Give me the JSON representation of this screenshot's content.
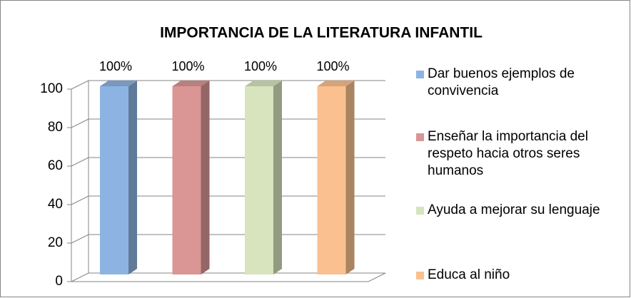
{
  "chart_data": {
    "type": "bar3d",
    "title": "IMPORTANCIA DE LA LITERATURA INFANTIL",
    "categories": [
      null
    ],
    "series": [
      {
        "name": "Dar buenos ejemplos de convivencia",
        "color": "#8db3e2",
        "values": [
          100
        ],
        "value_labels": [
          "100%"
        ]
      },
      {
        "name": "Enseñar la importancia del respeto hacia otros seres humanos",
        "color": "#d99694",
        "values": [
          100
        ],
        "value_labels": [
          "100%"
        ]
      },
      {
        "name": "Ayuda a mejorar su lenguaje",
        "color": "#d7e4bd",
        "values": [
          100
        ],
        "value_labels": [
          "100%"
        ]
      },
      {
        "name": "Educa al niño",
        "color": "#fac08f",
        "values": [
          100
        ],
        "value_labels": [
          "100%"
        ]
      }
    ],
    "ylim": [
      0,
      100
    ],
    "yticks": [
      0,
      20,
      40,
      60,
      80,
      100
    ],
    "grid": true,
    "legend": "right"
  }
}
